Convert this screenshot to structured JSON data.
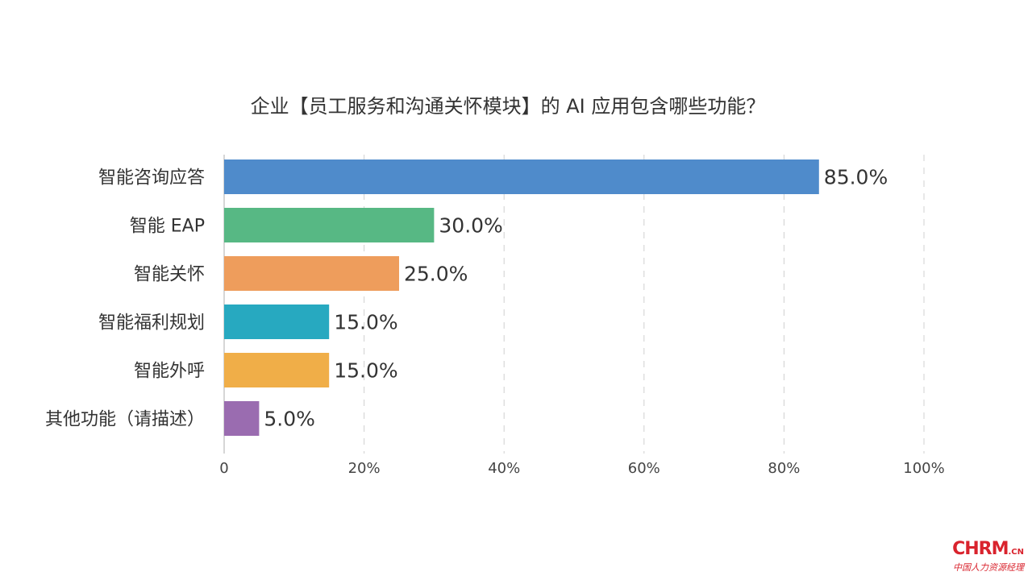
{
  "chart_data": {
    "type": "bar",
    "orientation": "horizontal",
    "title": "企业【员工服务和沟通关怀模块】的 AI 应用包含哪些功能？",
    "categories": [
      "智能咨询应答",
      "智能 EAP",
      "智能关怀",
      "智能福利规划",
      "智能外呼",
      "其他功能（请描述）"
    ],
    "values": [
      85.0,
      30.0,
      25.0,
      15.0,
      15.0,
      5.0
    ],
    "value_labels": [
      "85.0%",
      "30.0%",
      "25.0%",
      "15.0%",
      "15.0%",
      "5.0%"
    ],
    "colors": [
      "#4f8bcb",
      "#57b884",
      "#ee9d5c",
      "#27a9c0",
      "#f0ae48",
      "#9a6cb0"
    ],
    "xlim": [
      0,
      100
    ],
    "ticks": [
      0,
      20,
      40,
      60,
      80,
      100
    ],
    "tick_labels": [
      "0",
      "20%",
      "40%",
      "60%",
      "80%",
      "100%"
    ],
    "grid": "vertical dashed",
    "legend": "none"
  },
  "logo": {
    "main": "CHRM",
    "suffix": ".CN",
    "subtitle": "中国人力资源经理"
  }
}
